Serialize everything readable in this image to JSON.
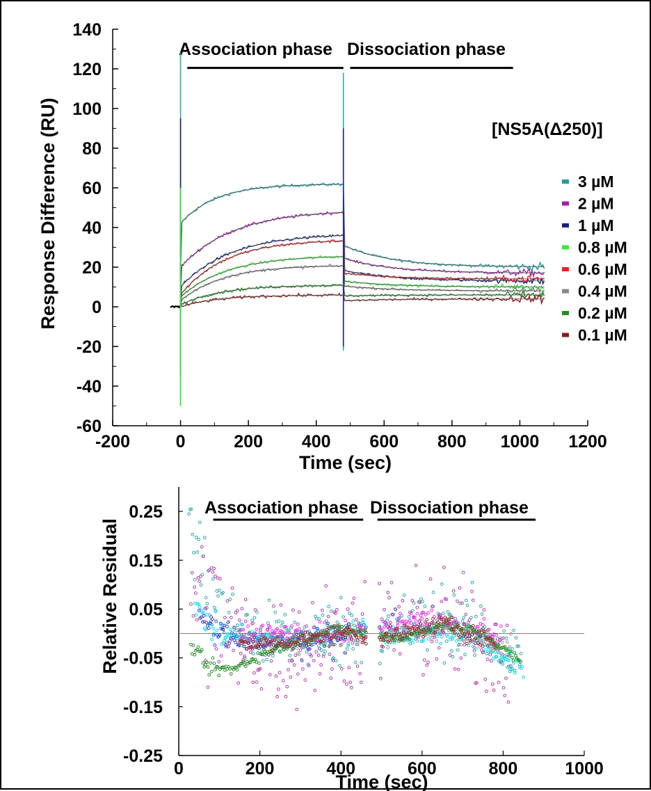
{
  "chart_data": [
    {
      "type": "line",
      "title": "",
      "xlabel": "Time (sec)",
      "ylabel": "Response Difference (RU)",
      "xlim": [
        -200,
        1200
      ],
      "ylim": [
        -60,
        140
      ],
      "xticks": [
        -200,
        0,
        200,
        400,
        600,
        800,
        1000,
        1200
      ],
      "yticks": [
        -60,
        -40,
        -20,
        0,
        20,
        40,
        60,
        80,
        100,
        120,
        140
      ],
      "xtick_labels": [
        "-200",
        "0",
        "200",
        "400",
        "600",
        "800",
        "1000",
        "1200"
      ],
      "ytick_labels": [
        "-60",
        "-40",
        "-20",
        "0",
        "20",
        "40",
        "60",
        "80",
        "100",
        "120",
        "140"
      ],
      "phases": [
        {
          "label": "Association phase",
          "start": 20,
          "end": 480
        },
        {
          "label": "Dissociation phase",
          "start": 500,
          "end": 980
        }
      ],
      "injection_times": [
        0,
        480
      ],
      "association_end": 480,
      "dissociation_end": 1075,
      "grid": false,
      "legend_title": "[NS5A(Δ250)]",
      "legend_position": "right",
      "series": [
        {
          "name": "3 µM",
          "color": "#1b9e9e",
          "plateau": 62,
          "dissoc_end": 20,
          "assoc_start": 42
        },
        {
          "name": "2 µM",
          "color": "#a020a0",
          "plateau": 49,
          "dissoc_end": 17,
          "assoc_start": 20
        },
        {
          "name": "1 µM",
          "color": "#1a237e",
          "plateau": 37,
          "dissoc_end": 13,
          "assoc_start": 10
        },
        {
          "name": "0.8 µM",
          "color": "#33ee33",
          "plateau": 26,
          "dissoc_end": 10,
          "assoc_start": 5
        },
        {
          "name": "0.6 µM",
          "color": "#ee2222",
          "plateau": 34,
          "dissoc_end": 14,
          "assoc_start": 6
        },
        {
          "name": "0.4 µM",
          "color": "#888888",
          "plateau": 21,
          "dissoc_end": 8,
          "assoc_start": 3
        },
        {
          "name": "0.2 µM",
          "color": "#1f8f1f",
          "plateau": 11,
          "dissoc_end": 6,
          "assoc_start": 1
        },
        {
          "name": "0.1 µM",
          "color": "#8b1a1a",
          "plateau": 6,
          "dissoc_end": 4,
          "assoc_start": 0
        }
      ]
    },
    {
      "type": "scatter",
      "title": "",
      "xlabel": "Time (sec)",
      "ylabel": "Relative Residual",
      "xlim": [
        0,
        1000
      ],
      "ylim": [
        -0.25,
        0.3
      ],
      "xticks": [
        0,
        200,
        400,
        600,
        800,
        1000
      ],
      "yticks": [
        -0.25,
        -0.15,
        -0.05,
        0.05,
        0.15,
        0.25
      ],
      "xtick_labels": [
        "0",
        "200",
        "400",
        "600",
        "800",
        "1000"
      ],
      "ytick_labels": [
        "-0.25",
        "-0.15",
        "-0.05",
        "0.05",
        "0.15",
        "0.25"
      ],
      "zero_line": 0,
      "phases": [
        {
          "label": "Association phase",
          "start": 85,
          "end": 455
        },
        {
          "label": "Dissociation phase",
          "start": 490,
          "end": 880
        }
      ],
      "grid": false,
      "series": [
        {
          "color": "#2fa7a7",
          "x_start": 25,
          "x_end": 845,
          "trend": [
            [
              25,
              0.25
            ],
            [
              60,
              0.12
            ],
            [
              120,
              0.02
            ],
            [
              200,
              -0.01
            ],
            [
              300,
              -0.01
            ],
            [
              450,
              0.01
            ],
            [
              500,
              0.0
            ],
            [
              650,
              0.03
            ],
            [
              750,
              0.0
            ],
            [
              845,
              -0.06
            ]
          ],
          "noise": 0.05
        },
        {
          "color": "#b03cb0",
          "x_start": 30,
          "x_end": 820,
          "trend": [
            [
              30,
              0.1
            ],
            [
              80,
              0.05
            ],
            [
              150,
              -0.02
            ],
            [
              250,
              -0.04
            ],
            [
              350,
              -0.02
            ],
            [
              450,
              0.0
            ],
            [
              520,
              0.01
            ],
            [
              650,
              0.02
            ],
            [
              820,
              -0.04
            ]
          ],
          "noise": 0.08
        },
        {
          "color": "#00e0f0",
          "x_start": 40,
          "x_end": 850,
          "trend": [
            [
              40,
              0.05
            ],
            [
              100,
              0.0
            ],
            [
              200,
              -0.01
            ],
            [
              300,
              -0.02
            ],
            [
              460,
              0.01
            ],
            [
              500,
              0.0
            ],
            [
              700,
              0.0
            ],
            [
              850,
              -0.07
            ]
          ],
          "noise": 0.015
        },
        {
          "color": "#3a3ad8",
          "x_start": 50,
          "x_end": 420,
          "trend": [
            [
              50,
              0.03
            ],
            [
              120,
              -0.01
            ],
            [
              250,
              -0.02
            ],
            [
              420,
              0.0
            ]
          ],
          "noise": 0.015
        },
        {
          "color": "#ee22ee",
          "x_start": 150,
          "x_end": 800,
          "trend": [
            [
              150,
              0.0
            ],
            [
              300,
              0.0
            ],
            [
              420,
              0.0
            ],
            [
              500,
              0.01
            ],
            [
              620,
              0.03
            ],
            [
              700,
              0.01
            ],
            [
              800,
              -0.01
            ]
          ],
          "noise": 0.015
        },
        {
          "color": "#999999",
          "x_start": 150,
          "x_end": 820,
          "trend": [
            [
              150,
              -0.01
            ],
            [
              300,
              -0.02
            ],
            [
              420,
              0.0
            ],
            [
              500,
              -0.01
            ],
            [
              650,
              0.01
            ],
            [
              820,
              -0.03
            ]
          ],
          "noise": 0.015
        },
        {
          "color": "#228b22",
          "x_start": 30,
          "x_end": 845,
          "trend": [
            [
              30,
              -0.02
            ],
            [
              70,
              -0.07
            ],
            [
              130,
              -0.075
            ],
            [
              200,
              -0.045
            ],
            [
              300,
              -0.01
            ],
            [
              400,
              0.01
            ],
            [
              450,
              0.0
            ],
            [
              550,
              -0.01
            ],
            [
              650,
              0.02
            ],
            [
              750,
              0.0
            ],
            [
              845,
              -0.06
            ]
          ],
          "noise": 0.008
        },
        {
          "color": "#9b2a2a",
          "x_start": 150,
          "x_end": 780,
          "trend": [
            [
              150,
              -0.02
            ],
            [
              250,
              -0.02
            ],
            [
              350,
              -0.01
            ],
            [
              420,
              0.0
            ],
            [
              500,
              -0.01
            ],
            [
              650,
              0.02
            ],
            [
              780,
              -0.02
            ]
          ],
          "noise": 0.012
        }
      ]
    }
  ]
}
